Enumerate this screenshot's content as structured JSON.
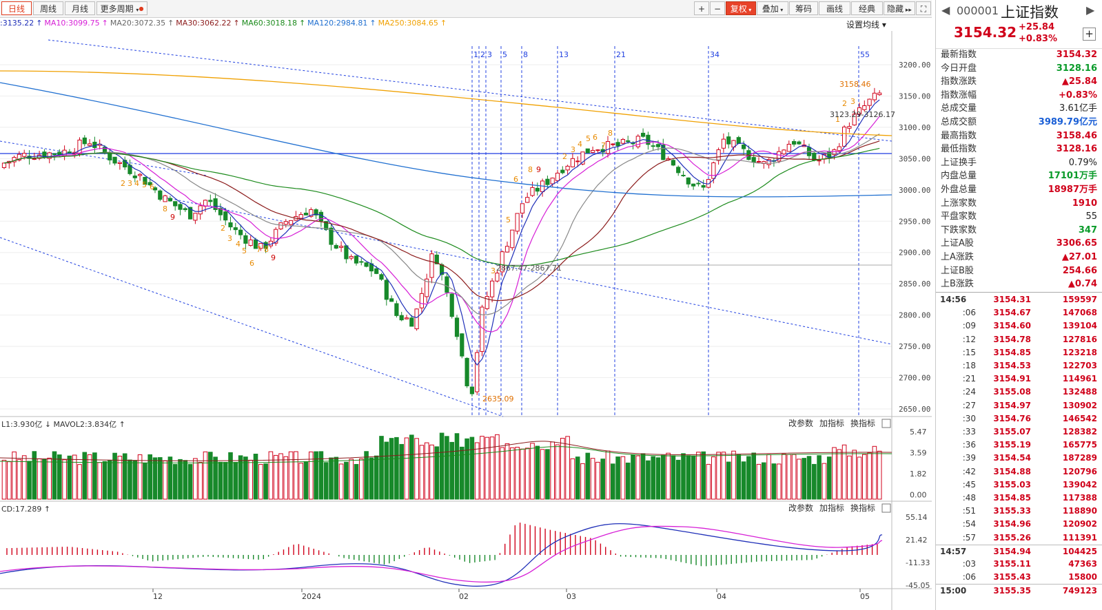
{
  "toolbar": {
    "tabs": [
      "日线",
      "周线",
      "月线",
      "更多周期"
    ],
    "active_tab": "日线",
    "buttons": [
      "+",
      "−",
      "复权",
      "叠加",
      "筹码",
      "画线",
      "经典",
      "隐藏",
      "⛶"
    ]
  },
  "ma_bar": [
    {
      "text": ":3135.22",
      "color": "#1f2fb8"
    },
    {
      "text": "MA10:3099.75",
      "color": "#d61ed6"
    },
    {
      "text": "MA20:3072.35",
      "color": "#666666"
    },
    {
      "text": "MA30:3062.22",
      "color": "#8b1a1a"
    },
    {
      "text": "MA60:3018.18",
      "color": "#1b8a1b"
    },
    {
      "text": "MA120:2984.81",
      "color": "#1f6fd0"
    },
    {
      "text": "MA250:3084.65",
      "color": "#f0a000"
    }
  ],
  "ma_settings_label": "设置均线 ▾",
  "price_axis": [
    "3200.00",
    "3150.00",
    "3100.00",
    "3050.00",
    "3000.00",
    "2950.00",
    "2900.00",
    "2850.00",
    "2800.00",
    "2750.00",
    "2700.00",
    "2650.00"
  ],
  "fib_labels": [
    "1",
    "2",
    "3",
    "5",
    "8",
    "13",
    "21",
    "34",
    "55"
  ],
  "annotations": {
    "high": "3158.46",
    "low": "2635.09",
    "mid_marker": "2867.47-2867.71",
    "last_range": "3123.29-3126.17"
  },
  "volume_panel": {
    "title": "L1:3.930亿 ↓ MAVOL2:3.834亿 ↑",
    "axis": [
      "5.47",
      "3.59",
      "1.82",
      "0.00"
    ],
    "btns": [
      "改参数",
      "加指标",
      "换指标"
    ]
  },
  "macd_panel": {
    "title": "CD:17.289 ↑",
    "axis": [
      "55.14",
      "21.42",
      "-11.33",
      "-45.05"
    ],
    "btns": [
      "改参数",
      "加指标",
      "换指标"
    ]
  },
  "date_axis": [
    "12",
    "2024",
    "02",
    "03",
    "04",
    "05"
  ],
  "sidebar": {
    "code": "000001",
    "name": "上证指数",
    "price": "3154.32",
    "change": "+25.84",
    "change_pct": "+0.83%",
    "stats": [
      {
        "k": "最新指数",
        "v": "3154.32",
        "c": "red"
      },
      {
        "k": "今日开盘",
        "v": "3128.16",
        "c": "green"
      },
      {
        "k": "指数涨跌",
        "v": "▲25.84",
        "c": "red"
      },
      {
        "k": "指数涨幅",
        "v": "+0.83%",
        "c": "red"
      },
      {
        "k": "总成交量",
        "v": "3.61亿手",
        "c": "black"
      },
      {
        "k": "总成交额",
        "v": "3989.79亿元",
        "c": "blue"
      },
      {
        "k": "最高指数",
        "v": "3158.46",
        "c": "red"
      },
      {
        "k": "最低指数",
        "v": "3128.16",
        "c": "red"
      },
      {
        "k": "上证换手",
        "v": "0.79%",
        "c": "black"
      },
      {
        "k": "内盘总量",
        "v": "17101万手",
        "c": "green"
      },
      {
        "k": "外盘总量",
        "v": "18987万手",
        "c": "red"
      },
      {
        "k": "上涨家数",
        "v": "1910",
        "c": "red"
      },
      {
        "k": "平盘家数",
        "v": "55",
        "c": "black"
      },
      {
        "k": "下跌家数",
        "v": "347",
        "c": "green"
      },
      {
        "k": "上证A股",
        "v": "3306.65",
        "c": "red"
      },
      {
        "k": "上A涨跌",
        "v": "▲27.01",
        "c": "red"
      },
      {
        "k": "上证B股",
        "v": "254.66",
        "c": "red"
      },
      {
        "k": "上B涨跌",
        "v": "▲0.74",
        "c": "red"
      }
    ],
    "ticks": [
      {
        "t": "14:56",
        "p": "3154.31",
        "v": "159597"
      },
      {
        "t": ":06",
        "p": "3154.67",
        "v": "147068"
      },
      {
        "t": ":09",
        "p": "3154.60",
        "v": "139104"
      },
      {
        "t": ":12",
        "p": "3154.78",
        "v": "127816"
      },
      {
        "t": ":15",
        "p": "3154.85",
        "v": "123218"
      },
      {
        "t": ":18",
        "p": "3154.53",
        "v": "122703"
      },
      {
        "t": ":21",
        "p": "3154.91",
        "v": "114961"
      },
      {
        "t": ":24",
        "p": "3155.08",
        "v": "132488"
      },
      {
        "t": ":27",
        "p": "3154.97",
        "v": "130902"
      },
      {
        "t": ":30",
        "p": "3154.76",
        "v": "146542"
      },
      {
        "t": ":33",
        "p": "3155.07",
        "v": "128382"
      },
      {
        "t": ":36",
        "p": "3155.19",
        "v": "165775"
      },
      {
        "t": ":39",
        "p": "3154.54",
        "v": "187289"
      },
      {
        "t": ":42",
        "p": "3154.88",
        "v": "120796"
      },
      {
        "t": ":45",
        "p": "3155.03",
        "v": "139042"
      },
      {
        "t": ":48",
        "p": "3154.85",
        "v": "117388"
      },
      {
        "t": ":51",
        "p": "3155.33",
        "v": "118890"
      },
      {
        "t": ":54",
        "p": "3154.96",
        "v": "120902"
      },
      {
        "t": ":57",
        "p": "3155.26",
        "v": "111391"
      },
      {
        "t": "14:57",
        "p": "3154.94",
        "v": "104425"
      },
      {
        "t": ":03",
        "p": "3155.11",
        "v": "47363"
      },
      {
        "t": ":06",
        "p": "3155.43",
        "v": "15800"
      },
      {
        "t": "15:00",
        "p": "3155.35",
        "v": "749123"
      }
    ]
  }
}
